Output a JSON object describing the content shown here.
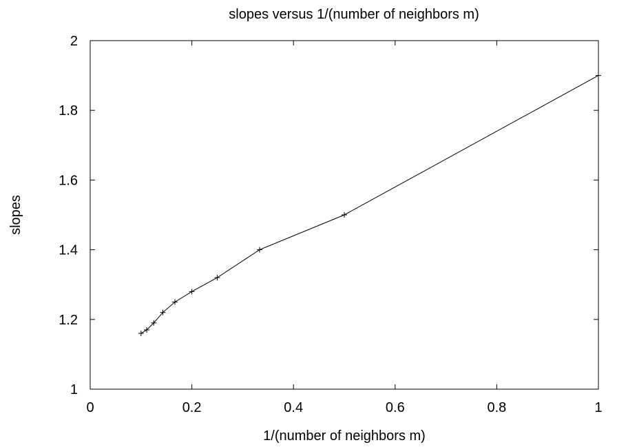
{
  "chart_data": {
    "type": "line",
    "title": "slopes versus 1/(number of neighbors m)",
    "xlabel": "1/(number of neighbors m)",
    "ylabel": "slopes",
    "xlim": [
      0,
      1
    ],
    "ylim": [
      1,
      2
    ],
    "x_ticks": [
      0,
      0.2,
      0.4,
      0.6,
      0.8,
      1
    ],
    "x_tick_labels": [
      "0",
      "0.2",
      "0.4",
      "0.6",
      "0.8",
      "1"
    ],
    "y_ticks": [
      1,
      1.2,
      1.4,
      1.6,
      1.8,
      2
    ],
    "y_tick_labels": [
      "1",
      "1.2",
      "1.4",
      "1.6",
      "1.8",
      "2"
    ],
    "grid": false,
    "marker": "plus",
    "line_color": "#000000",
    "series": [
      {
        "x": [
          0.1,
          0.1111,
          0.125,
          0.1429,
          0.1667,
          0.2,
          0.25,
          0.3333,
          0.5,
          1.0
        ],
        "y": [
          1.16,
          1.17,
          1.19,
          1.22,
          1.25,
          1.28,
          1.32,
          1.4,
          1.5,
          1.9
        ]
      }
    ]
  }
}
